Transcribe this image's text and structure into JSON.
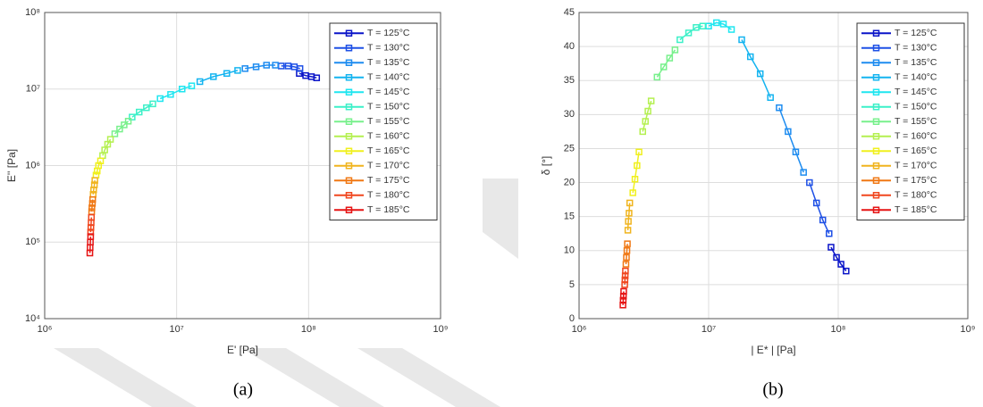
{
  "chart_data": [
    {
      "type": "line",
      "caption": "(a)",
      "x_label": "E' [Pa]",
      "y_label": "E'' [Pa]",
      "xscale": "log",
      "yscale": "log",
      "grid": true,
      "legend": "upper right",
      "xlim": [
        1000000,
        1000000000
      ],
      "xticks": [
        {
          "value": 1000000,
          "label": "10⁶"
        },
        {
          "value": 10000000,
          "label": "10⁷"
        },
        {
          "value": 100000000,
          "label": "10⁸"
        },
        {
          "value": 1000000000,
          "label": "10⁹"
        }
      ],
      "ylim": [
        10000,
        100000000
      ],
      "yticks": [
        {
          "value": 10000,
          "label": "10⁴"
        },
        {
          "value": 100000,
          "label": "10⁵"
        },
        {
          "value": 1000000,
          "label": "10⁶"
        },
        {
          "value": 10000000,
          "label": "10⁷"
        },
        {
          "value": 100000000,
          "label": "10⁸"
        }
      ],
      "series": [
        {
          "name": "T = 125°C",
          "color": "#0a14c8",
          "x": [
            85000000,
            95000000,
            105000000,
            115000000
          ],
          "values": [
            16000000,
            15000000,
            14500000,
            14000000
          ]
        },
        {
          "name": "T = 130°C",
          "color": "#1e50e6",
          "x": [
            62000000,
            70000000,
            78000000,
            86000000
          ],
          "values": [
            20000000,
            20000000,
            19500000,
            18500000
          ]
        },
        {
          "name": "T = 135°C",
          "color": "#1e8cf0",
          "x": [
            33000000,
            40000000,
            48000000,
            56000000
          ],
          "values": [
            18500000,
            19500000,
            20500000,
            20500000
          ]
        },
        {
          "name": "T = 140°C",
          "color": "#14b4f0",
          "x": [
            15000000,
            19000000,
            24000000,
            29000000
          ],
          "values": [
            12500000,
            14500000,
            16000000,
            17500000
          ]
        },
        {
          "name": "T = 145°C",
          "color": "#1ee6f0",
          "x": [
            7500000,
            9000000,
            11000000,
            13000000
          ],
          "values": [
            7500000,
            8500000,
            10000000,
            11000000
          ]
        },
        {
          "name": "T = 150°C",
          "color": "#3cf0c8",
          "x": [
            4600000,
            5200000,
            5900000,
            6600000
          ],
          "values": [
            4300000,
            5000000,
            5700000,
            6400000
          ]
        },
        {
          "name": "T = 155°C",
          "color": "#78f08c",
          "x": [
            3400000,
            3700000,
            4000000,
            4300000
          ],
          "values": [
            2600000,
            3000000,
            3400000,
            3800000
          ]
        },
        {
          "name": "T = 160°C",
          "color": "#b4f050",
          "x": [
            2750000,
            2850000,
            3000000,
            3150000
          ],
          "values": [
            1350000,
            1600000,
            1900000,
            2200000
          ]
        },
        {
          "name": "T = 165°C",
          "color": "#f0f01e",
          "x": [
            2450000,
            2500000,
            2560000,
            2650000
          ],
          "values": [
            750000,
            850000,
            1000000,
            1150000
          ]
        },
        {
          "name": "T = 170°C",
          "color": "#f0b41e",
          "x": [
            2330000,
            2350000,
            2380000,
            2400000
          ],
          "values": [
            420000,
            480000,
            560000,
            640000
          ]
        },
        {
          "name": "T = 175°C",
          "color": "#f07814",
          "x": [
            2270000,
            2280000,
            2300000,
            2310000
          ],
          "values": [
            250000,
            280000,
            320000,
            360000
          ]
        },
        {
          "name": "T = 180°C",
          "color": "#f0461e",
          "x": [
            2230000,
            2240000,
            2250000,
            2260000
          ],
          "values": [
            135000,
            155000,
            180000,
            210000
          ]
        },
        {
          "name": "T = 185°C",
          "color": "#e61414",
          "x": [
            2200000,
            2210000,
            2220000,
            2230000
          ],
          "values": [
            72000,
            85000,
            100000,
            118000
          ]
        }
      ]
    },
    {
      "type": "line",
      "caption": "(b)",
      "x_label": "| E* | [Pa]",
      "y_label": "δ [°]",
      "xscale": "log",
      "yscale": "linear",
      "grid": true,
      "legend": "upper right",
      "xlim": [
        1000000,
        1000000000
      ],
      "xticks": [
        {
          "value": 1000000,
          "label": "10⁶"
        },
        {
          "value": 10000000,
          "label": "10⁷"
        },
        {
          "value": 100000000,
          "label": "10⁸"
        },
        {
          "value": 1000000000,
          "label": "10⁹"
        }
      ],
      "ylim": [
        0,
        45
      ],
      "yticks": [
        0,
        5,
        10,
        15,
        20,
        25,
        30,
        35,
        40,
        45
      ],
      "series": [
        {
          "name": "T = 125°C",
          "color": "#0a14c8",
          "x": [
            88000000,
            97000000,
            105000000,
            115000000
          ],
          "values": [
            10.5,
            9,
            8,
            7
          ]
        },
        {
          "name": "T = 130°C",
          "color": "#1e50e6",
          "x": [
            60000000,
            68000000,
            76000000,
            85000000
          ],
          "values": [
            20,
            17,
            14.5,
            12.5
          ]
        },
        {
          "name": "T = 135°C",
          "color": "#1e8cf0",
          "x": [
            35000000,
            41000000,
            47000000,
            54000000
          ],
          "values": [
            31,
            27.5,
            24.5,
            21.5
          ]
        },
        {
          "name": "T = 140°C",
          "color": "#14b4f0",
          "x": [
            18000000,
            21000000,
            25000000,
            30000000
          ],
          "values": [
            41,
            38.5,
            36,
            32.5
          ]
        },
        {
          "name": "T = 145°C",
          "color": "#1ee6f0",
          "x": [
            10000000,
            11500000,
            13000000,
            15000000
          ],
          "values": [
            43,
            43.5,
            43.3,
            42.5
          ]
        },
        {
          "name": "T = 150°C",
          "color": "#3cf0c8",
          "x": [
            6000000,
            7000000,
            8000000,
            9000000
          ],
          "values": [
            41,
            42,
            42.8,
            43
          ]
        },
        {
          "name": "T = 155°C",
          "color": "#78f08c",
          "x": [
            4000000,
            4500000,
            5000000,
            5500000
          ],
          "values": [
            35.5,
            37,
            38.3,
            39.5
          ]
        },
        {
          "name": "T = 160°C",
          "color": "#b4f050",
          "x": [
            3100000,
            3250000,
            3400000,
            3600000
          ],
          "values": [
            27.5,
            29,
            30.5,
            32
          ]
        },
        {
          "name": "T = 165°C",
          "color": "#f0f01e",
          "x": [
            2600000,
            2700000,
            2800000,
            2900000
          ],
          "values": [
            18.5,
            20.5,
            22.5,
            24.5
          ]
        },
        {
          "name": "T = 170°C",
          "color": "#f0b41e",
          "x": [
            2380000,
            2400000,
            2430000,
            2460000
          ],
          "values": [
            13,
            14.3,
            15.5,
            17
          ]
        },
        {
          "name": "T = 175°C",
          "color": "#f07814",
          "x": [
            2300000,
            2320000,
            2340000,
            2360000
          ],
          "values": [
            8,
            9,
            10,
            11
          ]
        },
        {
          "name": "T = 180°C",
          "color": "#f0461e",
          "x": [
            2250000,
            2260000,
            2270000,
            2280000
          ],
          "values": [
            5,
            5.7,
            6.3,
            7
          ]
        },
        {
          "name": "T = 185°C",
          "color": "#e61414",
          "x": [
            2180000,
            2190000,
            2200000,
            2210000
          ],
          "values": [
            2,
            2.7,
            3.3,
            4
          ]
        }
      ]
    }
  ]
}
